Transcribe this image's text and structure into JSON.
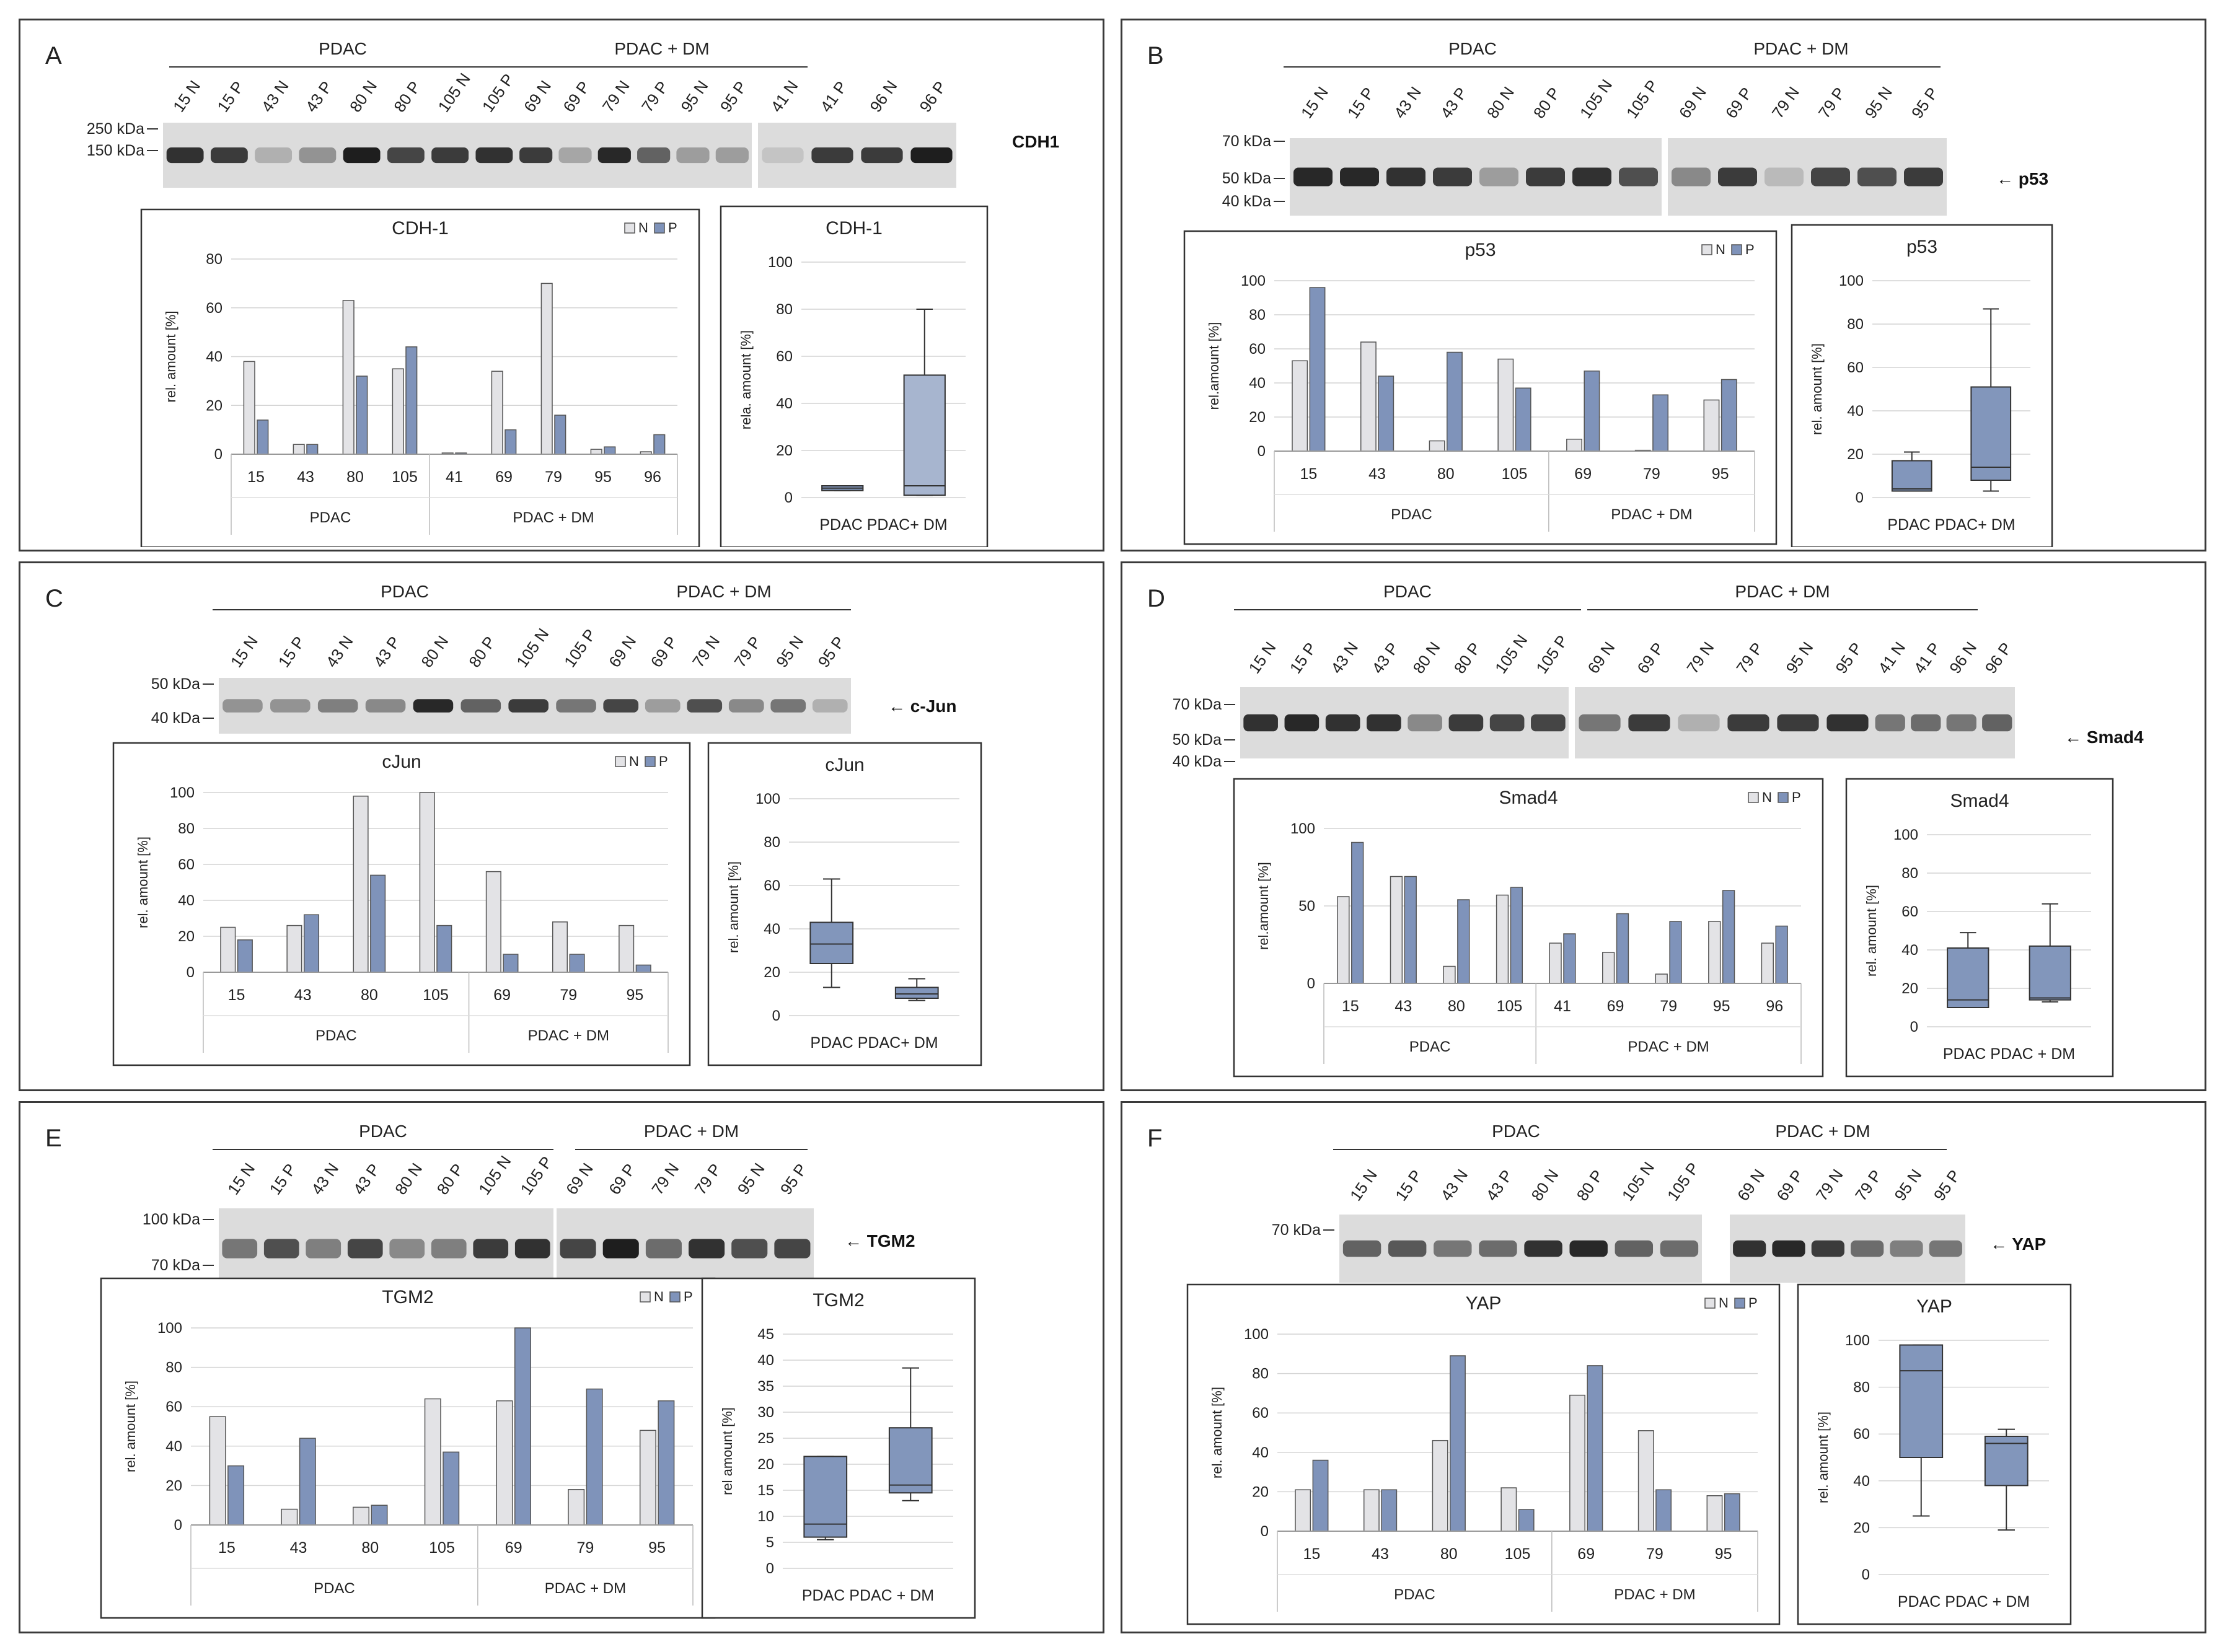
{
  "colors": {
    "N": "#e3e3e6",
    "P": "#7f93ba",
    "box": "#8296bb",
    "boxLight": "#a7b5cf",
    "frame": "#3a3a3a",
    "grid": "#d4d4d4"
  },
  "panels": [
    {
      "letter": "A",
      "protein_label": "CDH1",
      "blot": {
        "groups": [
          "PDAC",
          "PDAC + DM"
        ],
        "lanes": [
          [
            "15 N",
            "15 P",
            "43 N",
            "43 P",
            "80 N",
            "80 P",
            "105 N",
            "105 P"
          ],
          [
            "69 N",
            "69 P",
            "79 N",
            "79 P",
            "95 N",
            "95 P"
          ],
          [
            "41 N",
            "41 P",
            "96 N",
            "96 P"
          ]
        ],
        "intensities": [
          [
            0.85,
            0.8,
            0.2,
            0.35,
            0.95,
            0.75,
            0.8,
            0.85
          ],
          [
            0.8,
            0.25,
            0.9,
            0.6,
            0.3,
            0.3
          ],
          [
            0.1,
            0.8,
            0.8,
            0.95
          ]
        ],
        "markers": [
          "250 kDa",
          "150 kDa"
        ]
      },
      "chart_data": [
        {
          "type": "bar",
          "title": "CDH-1",
          "ylabel": "rel. amount [%]",
          "ylim": [
            0,
            80
          ],
          "yticks": [
            0,
            20,
            40,
            60,
            80
          ],
          "categories": [
            "15",
            "43",
            "80",
            "105",
            "41",
            "69",
            "79",
            "95",
            "96"
          ],
          "groups": [
            {
              "label": "PDAC",
              "count": 4
            },
            {
              "label": "PDAC + DM",
              "count": 5
            }
          ],
          "series": [
            {
              "name": "N",
              "values": [
                38,
                4,
                63,
                35,
                0.5,
                34,
                70,
                2,
                1
              ]
            },
            {
              "name": "P",
              "values": [
                14,
                4,
                32,
                44,
                0.5,
                10,
                16,
                3,
                8
              ]
            }
          ]
        },
        {
          "type": "box",
          "title": "CDH-1",
          "ylabel": "rela. amount [%]",
          "ylim": [
            0,
            100
          ],
          "yticks": [
            0,
            20,
            40,
            60,
            80,
            100
          ],
          "categories": [
            "PDAC",
            "PDAC+ DM"
          ],
          "xlabel_text": "PDAC PDAC+ DM",
          "boxes": [
            {
              "min": 3,
              "q1": 3,
              "median": 4,
              "q3": 5,
              "max": 5
            },
            {
              "min": 1,
              "q1": 1,
              "median": 5,
              "q3": 52,
              "max": 80
            }
          ]
        }
      ]
    },
    {
      "letter": "B",
      "protein_label": "p53",
      "blot": {
        "groups": [
          "PDAC",
          "PDAC + DM"
        ],
        "lanes": [
          [
            "15 N",
            "15 P",
            "43 N",
            "43 P",
            "80 N",
            "80 P",
            "105 N",
            "105 P"
          ],
          [
            "69 N",
            "69 P",
            "79 N",
            "79 P",
            "95 N",
            "95 P"
          ]
        ],
        "intensities": [
          [
            0.9,
            0.9,
            0.85,
            0.8,
            0.3,
            0.8,
            0.85,
            0.7
          ],
          [
            0.4,
            0.8,
            0.15,
            0.75,
            0.7,
            0.8
          ]
        ],
        "markers": [
          "70 kDa",
          "50 kDa",
          "40 kDa"
        ]
      },
      "chart_data": [
        {
          "type": "bar",
          "title": "p53",
          "ylabel": "rel.amount [%]",
          "ylim": [
            0,
            100
          ],
          "yticks": [
            0,
            20,
            40,
            60,
            80,
            100
          ],
          "categories": [
            "15",
            "43",
            "80",
            "105",
            "69",
            "79",
            "95"
          ],
          "groups": [
            {
              "label": "PDAC",
              "count": 4
            },
            {
              "label": "PDAC + DM",
              "count": 3
            }
          ],
          "series": [
            {
              "name": "N",
              "values": [
                53,
                64,
                6,
                54,
                7,
                0.5,
                30
              ]
            },
            {
              "name": "P",
              "values": [
                96,
                44,
                58,
                37,
                47,
                33,
                42
              ]
            }
          ]
        },
        {
          "type": "box",
          "title": "p53",
          "ylabel": "rel. amount [%]",
          "ylim": [
            0,
            100
          ],
          "yticks": [
            0,
            20,
            40,
            60,
            80,
            100
          ],
          "categories": [
            "PDAC",
            "PDAC+ DM"
          ],
          "xlabel_text": "PDAC   PDAC+ DM",
          "boxes": [
            {
              "min": 3,
              "q1": 3,
              "median": 4,
              "q3": 17,
              "max": 21
            },
            {
              "min": 3,
              "q1": 8,
              "median": 14,
              "q3": 51,
              "max": 87
            }
          ]
        }
      ]
    },
    {
      "letter": "C",
      "protein_label": "c-Jun",
      "blot": {
        "groups": [
          "PDAC",
          "PDAC + DM"
        ],
        "lanes": [
          [
            "15 N",
            "15 P",
            "43 N",
            "43 P",
            "80 N",
            "80 P",
            "105 N",
            "105 P"
          ],
          [
            "69 N",
            "69 P",
            "79 N",
            "79 P",
            "95 N",
            "95 P"
          ]
        ],
        "intensities": [
          [
            0.35,
            0.35,
            0.45,
            0.4,
            0.9,
            0.6,
            0.8,
            0.5
          ],
          [
            0.75,
            0.3,
            0.7,
            0.4,
            0.5,
            0.2
          ]
        ],
        "markers": [
          "50 kDa",
          "40 kDa"
        ]
      },
      "chart_data": [
        {
          "type": "bar",
          "title": "cJun",
          "ylabel": "rel. amount [%]",
          "ylim": [
            0,
            100
          ],
          "yticks": [
            0,
            20,
            40,
            60,
            80,
            100
          ],
          "categories": [
            "15",
            "43",
            "80",
            "105",
            "69",
            "79",
            "95"
          ],
          "groups": [
            {
              "label": "PDAC",
              "count": 4
            },
            {
              "label": "PDAC + DM",
              "count": 3
            }
          ],
          "series": [
            {
              "name": "N",
              "values": [
                25,
                26,
                98,
                100,
                56,
                28,
                26
              ]
            },
            {
              "name": "P",
              "values": [
                18,
                32,
                54,
                26,
                10,
                10,
                4
              ]
            }
          ]
        },
        {
          "type": "box",
          "title": "cJun",
          "ylabel": "rel. amount [%]",
          "ylim": [
            0,
            100
          ],
          "yticks": [
            0,
            20,
            40,
            60,
            80,
            100
          ],
          "categories": [
            "PDAC",
            "PDAC+ DM"
          ],
          "xlabel_text": "PDAC  PDAC+ DM",
          "boxes": [
            {
              "min": 13,
              "q1": 24,
              "median": 33,
              "q3": 43,
              "max": 63
            },
            {
              "min": 7,
              "q1": 8,
              "median": 10,
              "q3": 13,
              "max": 17
            }
          ]
        }
      ]
    },
    {
      "letter": "D",
      "protein_label": "Smad4",
      "blot": {
        "groups": [
          "PDAC",
          "PDAC + DM"
        ],
        "lanes": [
          [
            "15 N",
            "15 P",
            "43 N",
            "43 P",
            "80 N",
            "80 P",
            "105 N",
            "105 P"
          ],
          [
            "69 N",
            "69 P",
            "79 N",
            "79 P",
            "95 N",
            "95 P"
          ],
          [
            "41 N",
            "41 P",
            "96 N",
            "96 P"
          ]
        ],
        "intensities": [
          [
            0.85,
            0.9,
            0.85,
            0.85,
            0.4,
            0.8,
            0.75,
            0.75
          ],
          [
            0.5,
            0.8,
            0.2,
            0.8,
            0.8,
            0.85
          ],
          [
            0.5,
            0.55,
            0.5,
            0.6
          ]
        ],
        "markers": [
          "70 kDa",
          "50 kDa",
          "40 kDa"
        ]
      },
      "chart_data": [
        {
          "type": "bar",
          "title": "Smad4",
          "ylabel": "rel.amount [%]",
          "ylim": [
            0,
            100
          ],
          "yticks": [
            0,
            50,
            100
          ],
          "categories": [
            "15",
            "43",
            "80",
            "105",
            "41",
            "69",
            "79",
            "95",
            "96"
          ],
          "groups": [
            {
              "label": "PDAC",
              "count": 4
            },
            {
              "label": "PDAC + DM",
              "count": 5
            }
          ],
          "series": [
            {
              "name": "N",
              "values": [
                56,
                69,
                11,
                57,
                26,
                20,
                6,
                40,
                26
              ]
            },
            {
              "name": "P",
              "values": [
                91,
                69,
                54,
                62,
                32,
                45,
                40,
                60,
                37
              ]
            }
          ]
        },
        {
          "type": "box",
          "title": "Smad4",
          "ylabel": "rel. amount [%]",
          "ylim": [
            0,
            100
          ],
          "yticks": [
            0,
            20,
            40,
            60,
            80,
            100
          ],
          "categories": [
            "PDAC",
            "PDAC + DM"
          ],
          "xlabel_text": "PDAC   PDAC + DM",
          "boxes": [
            {
              "min": 10,
              "q1": 10,
              "median": 14,
              "q3": 41,
              "max": 49
            },
            {
              "min": 13,
              "q1": 14,
              "median": 15,
              "q3": 42,
              "max": 64
            }
          ]
        }
      ]
    },
    {
      "letter": "E",
      "protein_label": "TGM2",
      "blot": {
        "groups": [
          "PDAC",
          "PDAC + DM"
        ],
        "lanes": [
          [
            "15 N",
            "15 P",
            "43 N",
            "43 P",
            "80 N",
            "80 P",
            "105 N",
            "105 P"
          ],
          [
            "69 N",
            "69 P",
            "79 N",
            "79 P",
            "95 N",
            "95 P"
          ]
        ],
        "intensities": [
          [
            0.5,
            0.7,
            0.45,
            0.75,
            0.4,
            0.45,
            0.8,
            0.85
          ],
          [
            0.75,
            0.95,
            0.55,
            0.85,
            0.7,
            0.75
          ]
        ],
        "markers": [
          "100 kDa",
          "70 kDa"
        ]
      },
      "chart_data": [
        {
          "type": "bar",
          "title": "TGM2",
          "ylabel": "rel. amount [%]",
          "ylim": [
            0,
            100
          ],
          "yticks": [
            0,
            20,
            40,
            60,
            80,
            100
          ],
          "categories": [
            "15",
            "43",
            "80",
            "105",
            "69",
            "79",
            "95"
          ],
          "groups": [
            {
              "label": "PDAC",
              "count": 4
            },
            {
              "label": "PDAC + DM",
              "count": 3
            }
          ],
          "series": [
            {
              "name": "N",
              "values": [
                55,
                8,
                9,
                64,
                63,
                18,
                48
              ]
            },
            {
              "name": "P",
              "values": [
                30,
                44,
                10,
                37,
                100,
                69,
                63
              ]
            }
          ]
        },
        {
          "type": "box",
          "title": "TGM2",
          "ylabel": "rel amount [%]",
          "ylim": [
            0,
            45
          ],
          "yticks": [
            0,
            5,
            10,
            15,
            20,
            25,
            30,
            35,
            40,
            45
          ],
          "categories": [
            "PDAC",
            "PDAC + DM"
          ],
          "xlabel_text": "PDAC PDAC + DM",
          "boxes": [
            {
              "min": 5.5,
              "q1": 6,
              "median": 8.5,
              "q3": 21.5,
              "max": 21.5
            },
            {
              "min": 13,
              "q1": 14.5,
              "median": 16,
              "q3": 27,
              "max": 38.5
            }
          ]
        }
      ]
    },
    {
      "letter": "F",
      "protein_label": "YAP",
      "blot": {
        "groups": [
          "PDAC",
          "PDAC + DM"
        ],
        "lanes": [
          [
            "15 N",
            "15 P",
            "43 N",
            "43 P",
            "80 N",
            "80 P",
            "105 N",
            "105 P"
          ],
          [
            "69 N",
            "69 P",
            "79 N",
            "79 P",
            "95 N",
            "95 P"
          ]
        ],
        "intensities": [
          [
            0.6,
            0.65,
            0.5,
            0.55,
            0.85,
            0.9,
            0.6,
            0.55
          ],
          [
            0.85,
            0.9,
            0.8,
            0.55,
            0.45,
            0.5
          ]
        ],
        "markers": [
          "70 kDa"
        ]
      },
      "chart_data": [
        {
          "type": "bar",
          "title": "YAP",
          "ylabel": "rel. amount [%]",
          "ylim": [
            0,
            100
          ],
          "yticks": [
            0,
            20,
            40,
            60,
            80,
            100
          ],
          "categories": [
            "15",
            "43",
            "80",
            "105",
            "69",
            "79",
            "95"
          ],
          "groups": [
            {
              "label": "PDAC",
              "count": 4
            },
            {
              "label": "PDAC + DM",
              "count": 3
            }
          ],
          "series": [
            {
              "name": "N",
              "values": [
                21,
                21,
                46,
                22,
                69,
                51,
                18
              ]
            },
            {
              "name": "P",
              "values": [
                36,
                21,
                89,
                11,
                84,
                21,
                19
              ]
            }
          ]
        },
        {
          "type": "box",
          "title": "YAP",
          "ylabel": "rel. amount [%]",
          "ylim": [
            0,
            100
          ],
          "yticks": [
            0,
            20,
            40,
            60,
            80,
            100
          ],
          "categories": [
            "PDAC",
            "PDAC + DM"
          ],
          "xlabel_text": "PDAC PDAC + DM",
          "boxes": [
            {
              "min": 25,
              "q1": 50,
              "median": 87,
              "q3": 98,
              "max": 98
            },
            {
              "min": 19,
              "q1": 38,
              "median": 56,
              "q3": 59,
              "max": 62
            }
          ]
        }
      ]
    }
  ]
}
